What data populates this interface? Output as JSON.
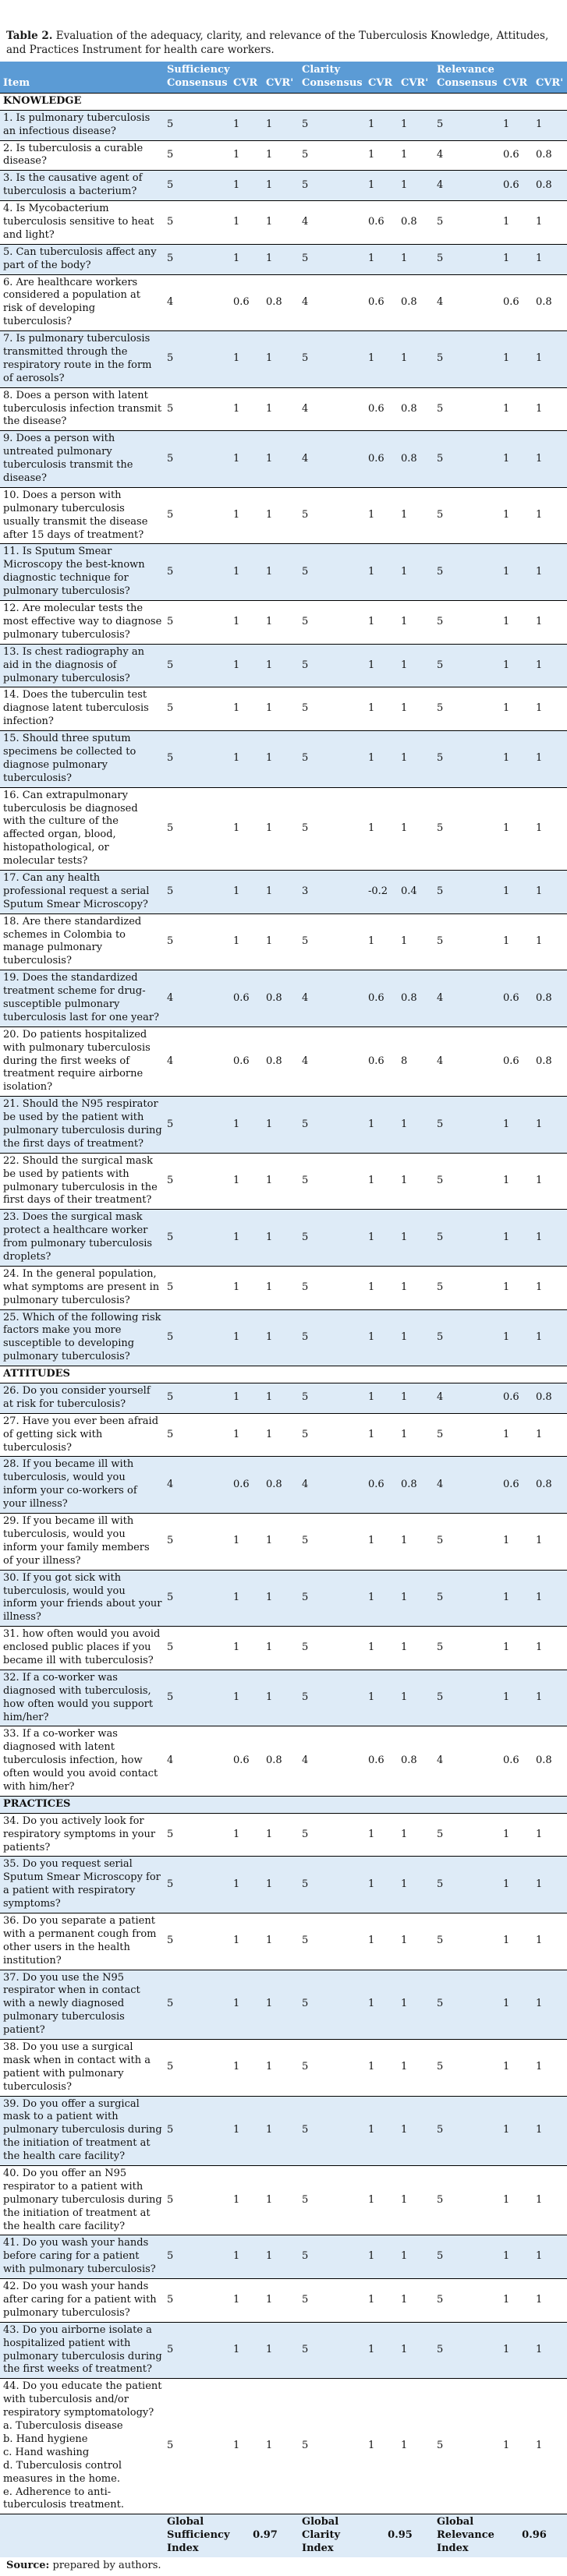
{
  "title": {
    "label": "Table 2.",
    "text": " Evaluation of the adequacy, clarity, and relevance of the Tuberculosis Knowledge, Attitudes, and Practices Instrument for health care workers."
  },
  "header": {
    "item": "Item",
    "groups": [
      {
        "consensus": "Sufficiency Consensus",
        "cvr": "CVR",
        "cvr_prime": "CVR'"
      },
      {
        "consensus": "Clarity Consensus",
        "cvr": "CVR",
        "cvr_prime": "CVR'"
      },
      {
        "consensus": "Relevance Consensus",
        "cvr": "CVR",
        "cvr_prime": "CVR'"
      }
    ]
  },
  "rows": [
    {
      "type": "section",
      "label": "KNOWLEDGE"
    },
    {
      "type": "item",
      "item": "1. Is pulmonary tuberculosis an infectious disease?",
      "values": [
        "5",
        "1",
        "1",
        "5",
        "1",
        "1",
        "5",
        "1",
        "1"
      ]
    },
    {
      "type": "item",
      "item": "2. Is tuberculosis a curable disease?",
      "values": [
        "5",
        "1",
        "1",
        "5",
        "1",
        "1",
        "4",
        "0.6",
        "0.8"
      ]
    },
    {
      "type": "item",
      "item": "3. Is the causative agent of tuberculosis a bacterium?",
      "values": [
        "5",
        "1",
        "1",
        "5",
        "1",
        "1",
        "4",
        "0.6",
        "0.8"
      ]
    },
    {
      "type": "item",
      "item": "4. Is Mycobacterium tuberculosis sensitive to heat and light?",
      "values": [
        "5",
        "1",
        "1",
        "4",
        "0.6",
        "0.8",
        "5",
        "1",
        "1"
      ]
    },
    {
      "type": "item",
      "item": "5. Can tuberculosis affect any part of the body?",
      "values": [
        "5",
        "1",
        "1",
        "5",
        "1",
        "1",
        "5",
        "1",
        "1"
      ]
    },
    {
      "type": "item",
      "item": "6. Are healthcare workers considered a population at risk of developing tuberculosis?",
      "values": [
        "4",
        "0.6",
        "0.8",
        "4",
        "0.6",
        "0.8",
        "4",
        "0.6",
        "0.8"
      ]
    },
    {
      "type": "item",
      "item": "7. Is pulmonary tuberculosis transmitted through the respiratory route in the form of aerosols?",
      "values": [
        "5",
        "1",
        "1",
        "5",
        "1",
        "1",
        "5",
        "1",
        "1"
      ]
    },
    {
      "type": "item",
      "item": "8. Does a person with latent tuberculosis infection transmit the disease?",
      "values": [
        "5",
        "1",
        "1",
        "4",
        "0.6",
        "0.8",
        "5",
        "1",
        "1"
      ]
    },
    {
      "type": "item",
      "item": "9. Does a person with untreated pulmonary tuberculosis transmit the disease?",
      "values": [
        "5",
        "1",
        "1",
        "4",
        "0.6",
        "0.8",
        "5",
        "1",
        "1"
      ]
    },
    {
      "type": "item",
      "item": "10. Does a person with pulmonary tuberculosis usually transmit the disease after 15 days of treatment?",
      "values": [
        "5",
        "1",
        "1",
        "5",
        "1",
        "1",
        "5",
        "1",
        "1"
      ]
    },
    {
      "type": "item",
      "item": "11. Is Sputum Smear Microscopy the best-known diagnostic technique for pulmonary tuberculosis?",
      "values": [
        "5",
        "1",
        "1",
        "5",
        "1",
        "1",
        "5",
        "1",
        "1"
      ]
    },
    {
      "type": "item",
      "item": "12. Are molecular tests the most effective way to diagnose pulmonary tuberculosis?",
      "values": [
        "5",
        "1",
        "1",
        "5",
        "1",
        "1",
        "5",
        "1",
        "1"
      ]
    },
    {
      "type": "item",
      "item": "13. Is chest radiography an aid in the diagnosis of pulmonary tuberculosis?",
      "values": [
        "5",
        "1",
        "1",
        "5",
        "1",
        "1",
        "5",
        "1",
        "1"
      ]
    },
    {
      "type": "item",
      "item": "14. Does the tuberculin test diagnose latent tuberculosis infection?",
      "values": [
        "5",
        "1",
        "1",
        "5",
        "1",
        "1",
        "5",
        "1",
        "1"
      ]
    },
    {
      "type": "item",
      "item": "15. Should three sputum specimens be collected to diagnose pulmonary tuberculosis?",
      "values": [
        "5",
        "1",
        "1",
        "5",
        "1",
        "1",
        "5",
        "1",
        "1"
      ]
    },
    {
      "type": "item",
      "item": "16. Can extrapulmonary tuberculosis be diagnosed with the culture of the affected organ, blood, histopathological, or molecular tests?",
      "values": [
        "5",
        "1",
        "1",
        "5",
        "1",
        "1",
        "5",
        "1",
        "1"
      ]
    },
    {
      "type": "item",
      "item": "17. Can any health professional request a serial Sputum Smear Microscopy?",
      "values": [
        "5",
        "1",
        "1",
        "3",
        "-0.2",
        "0.4",
        "5",
        "1",
        "1"
      ]
    },
    {
      "type": "item",
      "item": "18. Are there standardized schemes in Colombia to manage pulmonary tuberculosis?",
      "values": [
        "5",
        "1",
        "1",
        "5",
        "1",
        "1",
        "5",
        "1",
        "1"
      ]
    },
    {
      "type": "item",
      "item": "19. Does the standardized treatment scheme for drug-susceptible pulmonary tuberculosis last for one year?",
      "values": [
        "4",
        "0.6",
        "0.8",
        "4",
        "0.6",
        "0.8",
        "4",
        "0.6",
        "0.8"
      ]
    },
    {
      "type": "item",
      "item": "20. Do patients hospitalized with pulmonary tuberculosis during the first weeks of treatment require airborne isolation?",
      "values": [
        "4",
        "0.6",
        "0.8",
        "4",
        "0.6",
        "8",
        "4",
        "0.6",
        "0.8"
      ]
    },
    {
      "type": "item",
      "item": "21. Should the N95 respirator be used by the patient with pulmonary tuberculosis during the first days of treatment?",
      "values": [
        "5",
        "1",
        "1",
        "5",
        "1",
        "1",
        "5",
        "1",
        "1"
      ]
    },
    {
      "type": "item",
      "item": "22. Should the surgical mask be used by patients with pulmonary tuberculosis in the first days of their treatment?",
      "values": [
        "5",
        "1",
        "1",
        "5",
        "1",
        "1",
        "5",
        "1",
        "1"
      ]
    },
    {
      "type": "item",
      "item": "23. Does the surgical mask protect a healthcare worker from pulmonary tuberculosis droplets?",
      "values": [
        "5",
        "1",
        "1",
        "5",
        "1",
        "1",
        "5",
        "1",
        "1"
      ]
    },
    {
      "type": "item",
      "item": "24. In the general population, what symptoms are present in pulmonary tuberculosis?",
      "values": [
        "5",
        "1",
        "1",
        "5",
        "1",
        "1",
        "5",
        "1",
        "1"
      ]
    },
    {
      "type": "item",
      "item": "25. Which of the following risk factors make you more susceptible to developing pulmonary tuberculosis?",
      "values": [
        "5",
        "1",
        "1",
        "5",
        "1",
        "1",
        "5",
        "1",
        "1"
      ]
    },
    {
      "type": "section",
      "label": "ATTITUDES"
    },
    {
      "type": "item",
      "item": "26. Do you consider yourself at risk for tuberculosis?",
      "values": [
        "5",
        "1",
        "1",
        "5",
        "1",
        "1",
        "4",
        "0.6",
        "0.8"
      ]
    },
    {
      "type": "item",
      "item": "27. Have you ever been afraid of getting sick with tuberculosis?",
      "values": [
        "5",
        "1",
        "1",
        "5",
        "1",
        "1",
        "5",
        "1",
        "1"
      ]
    },
    {
      "type": "item",
      "item": "28. If you became ill with tuberculosis, would you inform your co-workers of your illness?",
      "values": [
        "4",
        "0.6",
        "0.8",
        "4",
        "0.6",
        "0.8",
        "4",
        "0.6",
        "0.8"
      ]
    },
    {
      "type": "item",
      "item": "29. If you became ill with tuberculosis, would you inform your family members of your illness?",
      "values": [
        "5",
        "1",
        "1",
        "5",
        "1",
        "1",
        "5",
        "1",
        "1"
      ]
    },
    {
      "type": "item",
      "item": "30. If you got sick with tuberculosis, would you inform your friends about your illness?",
      "values": [
        "5",
        "1",
        "1",
        "5",
        "1",
        "1",
        "5",
        "1",
        "1"
      ]
    },
    {
      "type": "item",
      "item": "31. how often would you avoid enclosed public places if you became ill with tuberculosis?",
      "values": [
        "5",
        "1",
        "1",
        "5",
        "1",
        "1",
        "5",
        "1",
        "1"
      ]
    },
    {
      "type": "item",
      "item": "32. If a co-worker was diagnosed with tuberculosis, how often would you support him/her?",
      "values": [
        "5",
        "1",
        "1",
        "5",
        "1",
        "1",
        "5",
        "1",
        "1"
      ]
    },
    {
      "type": "item",
      "item": "33. If a co-worker was diagnosed with latent tuberculosis infection, how often would you avoid contact with him/her?",
      "values": [
        "4",
        "0.6",
        "0.8",
        "4",
        "0.6",
        "0.8",
        "4",
        "0.6",
        "0.8"
      ]
    },
    {
      "type": "section",
      "label": "PRACTICES"
    },
    {
      "type": "item",
      "item": "34. Do you actively look for respiratory symptoms in your patients?",
      "values": [
        "5",
        "1",
        "1",
        "5",
        "1",
        "1",
        "5",
        "1",
        "1"
      ]
    },
    {
      "type": "item",
      "item": "35. Do you request serial Sputum Smear Microscopy for a patient with respiratory symptoms?",
      "values": [
        "5",
        "1",
        "1",
        "5",
        "1",
        "1",
        "5",
        "1",
        "1"
      ]
    },
    {
      "type": "item",
      "item": "36. Do you separate a patient with a permanent cough from other users in the health institution?",
      "values": [
        "5",
        "1",
        "1",
        "5",
        "1",
        "1",
        "5",
        "1",
        "1"
      ]
    },
    {
      "type": "item",
      "item": "37. Do you use the N95 respirator when in contact with a newly diagnosed pulmonary tuberculosis patient?",
      "values": [
        "5",
        "1",
        "1",
        "5",
        "1",
        "1",
        "5",
        "1",
        "1"
      ]
    },
    {
      "type": "item",
      "item": "38. Do you use a surgical mask when in contact with a patient with pulmonary tuberculosis?",
      "values": [
        "5",
        "1",
        "1",
        "5",
        "1",
        "1",
        "5",
        "1",
        "1"
      ]
    },
    {
      "type": "item",
      "item": "39. Do you offer a surgical mask to a patient with pulmonary tuberculosis during the initiation of treatment at the health care facility?",
      "values": [
        "5",
        "1",
        "1",
        "5",
        "1",
        "1",
        "5",
        "1",
        "1"
      ]
    },
    {
      "type": "item",
      "item": "40. Do you offer an N95 respirator to a patient with pulmonary tuberculosis during the initiation of treatment at the health care facility?",
      "values": [
        "5",
        "1",
        "1",
        "5",
        "1",
        "1",
        "5",
        "1",
        "1"
      ]
    },
    {
      "type": "item",
      "item": "41. Do you wash your hands before caring for a patient with pulmonary tuberculosis?",
      "values": [
        "5",
        "1",
        "1",
        "5",
        "1",
        "1",
        "5",
        "1",
        "1"
      ]
    },
    {
      "type": "item",
      "item": "42. Do you wash your hands after caring for a patient with pulmonary tuberculosis?",
      "values": [
        "5",
        "1",
        "1",
        "5",
        "1",
        "1",
        "5",
        "1",
        "1"
      ]
    },
    {
      "type": "item",
      "item": "43. Do you airborne isolate a hospitalized patient with pulmonary tuberculosis during the first weeks of treatment?",
      "values": [
        "5",
        "1",
        "1",
        "5",
        "1",
        "1",
        "5",
        "1",
        "1"
      ]
    },
    {
      "type": "item",
      "item": "44. Do you educate the patient with tuberculosis and/or respiratory symptomatology?\na. Tuberculosis disease\nb. Hand hygiene\nc. Hand washing\nd. Tuberculosis control measures in the home.\ne. Adherence to anti-tuberculosis treatment.",
      "values": [
        "5",
        "1",
        "1",
        "5",
        "1",
        "1",
        "5",
        "1",
        "1"
      ]
    }
  ],
  "footer": {
    "sufficiency_label": "Global Sufficiency Index",
    "sufficiency_value": "0.97",
    "clarity_label": "Global Clarity Index",
    "clarity_value": "0.95",
    "relevance_label": "Global Relevance Index",
    "relevance_value": "0.96"
  },
  "source": {
    "label": "Source:",
    "text": " prepared by authors."
  },
  "colors": {
    "header_bg": "#5B9BD5",
    "header_text": "#FFFFFF",
    "alt_row_bg": "#DEEBF7",
    "row_border": "#000000"
  }
}
